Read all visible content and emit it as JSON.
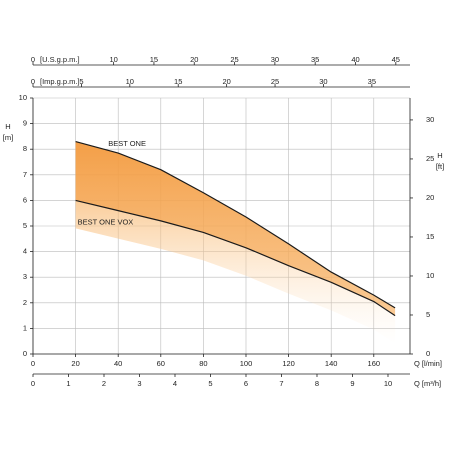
{
  "chart_data": {
    "type": "line",
    "y_label": "H",
    "y_unit": "[m]",
    "y2_label": "H",
    "y2_unit": "[ft]",
    "x_label": "Q [l/min]",
    "x": [
      20,
      40,
      60,
      80,
      100,
      120,
      140,
      160,
      170
    ],
    "series": [
      {
        "name": "BEST ONE",
        "color": "#1a1a1a",
        "values": [
          8.3,
          7.85,
          7.2,
          6.3,
          5.35,
          4.3,
          3.2,
          2.3,
          1.8
        ]
      },
      {
        "name": "BEST ONE VOX",
        "color": "#1a1a1a",
        "values": [
          6.0,
          5.6,
          5.2,
          4.75,
          4.15,
          3.45,
          2.8,
          2.05,
          1.5
        ]
      }
    ],
    "band_color": "#f5a04a",
    "xlim": [
      0,
      177
    ],
    "xticks": [
      0,
      20,
      40,
      60,
      80,
      100,
      120,
      140,
      160
    ],
    "ylim": [
      0,
      10
    ],
    "yticks": [
      0,
      1,
      2,
      3,
      4,
      5,
      6,
      7,
      8,
      9,
      10
    ],
    "y2lim": [
      0,
      32.81
    ],
    "y2ticks": [
      0,
      5,
      10,
      15,
      20,
      25,
      30
    ],
    "grid": true,
    "extra_axes": [
      {
        "label": "[U.S.g.p.m.]",
        "lim": [
          0,
          46.76
        ],
        "ticks": [
          0,
          10,
          15,
          20,
          25,
          30,
          35,
          40,
          45
        ]
      },
      {
        "label": "[Imp.g.p.m.]",
        "lim": [
          0,
          38.94
        ],
        "ticks": [
          0,
          5,
          10,
          15,
          20,
          25,
          30,
          35
        ]
      },
      {
        "label": "Q [m³/h]",
        "lim": [
          0,
          10.62
        ],
        "ticks": [
          0,
          1,
          2,
          3,
          4,
          5,
          6,
          7,
          8,
          9,
          10
        ]
      }
    ]
  }
}
